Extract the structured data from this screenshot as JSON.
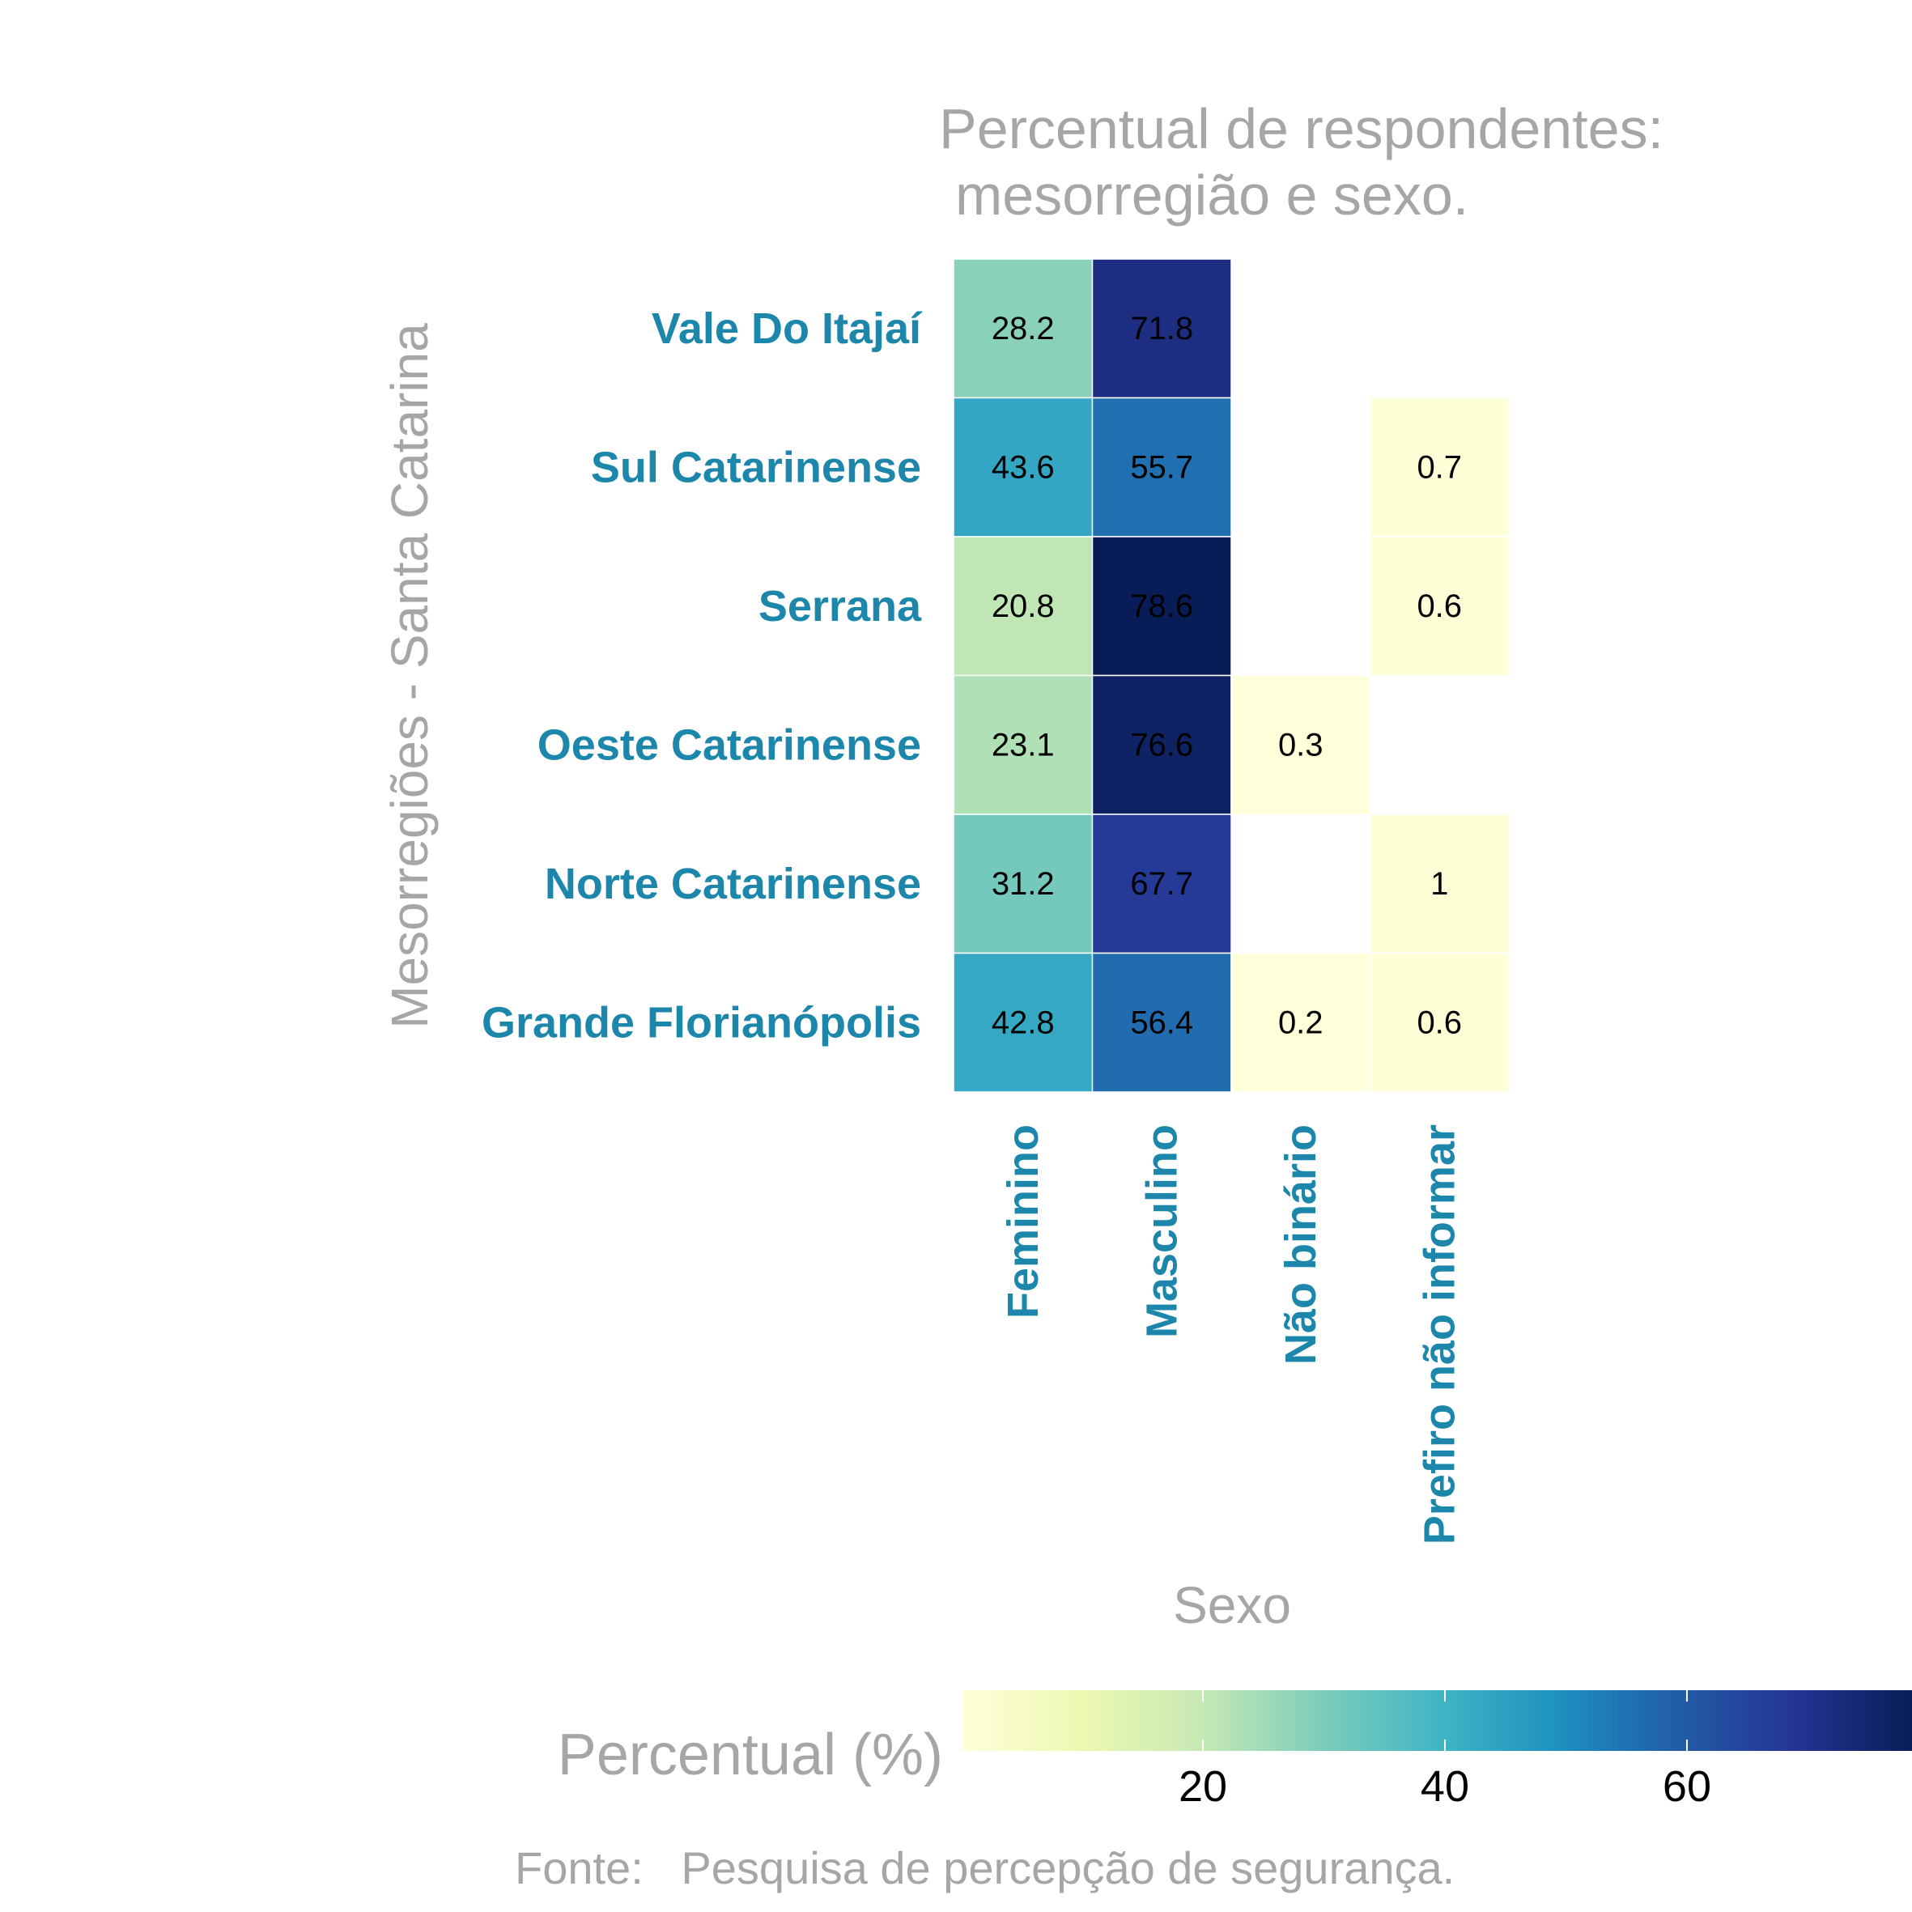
{
  "chart_data": {
    "type": "heatmap",
    "title": "Percentual de respondentes:",
    "subtitle": "mesorregião e sexo.",
    "xlabel": "Sexo",
    "ylabel": "Mesorregiões - Santa Catarina",
    "x_categories": [
      "Feminino",
      "Masculino",
      "Não binário",
      "Prefiro não informar"
    ],
    "y_categories": [
      "Vale Do Itajaí",
      "Sul Catarinense",
      "Serrana",
      "Oeste Catarinense",
      "Norte Catarinense",
      "Grande Florianópolis"
    ],
    "values": [
      [
        28.2,
        71.8,
        null,
        null
      ],
      [
        43.6,
        55.7,
        null,
        0.7
      ],
      [
        20.8,
        78.6,
        null,
        0.6
      ],
      [
        23.1,
        76.6,
        0.3,
        null
      ],
      [
        31.2,
        67.7,
        null,
        1
      ],
      [
        42.8,
        56.4,
        0.2,
        0.6
      ]
    ],
    "legend": {
      "title": "Percentual (%)",
      "ticks": [
        20,
        40,
        60
      ],
      "range": [
        0.2,
        78.6
      ],
      "palette": [
        "#ffffd9",
        "#edf8b1",
        "#c7e9b4",
        "#7fcdbb",
        "#41b6c4",
        "#1d91c0",
        "#225ea8",
        "#253494",
        "#081d58"
      ]
    },
    "caption": "Fonte:   Pesquisa de percepção de segurança."
  }
}
